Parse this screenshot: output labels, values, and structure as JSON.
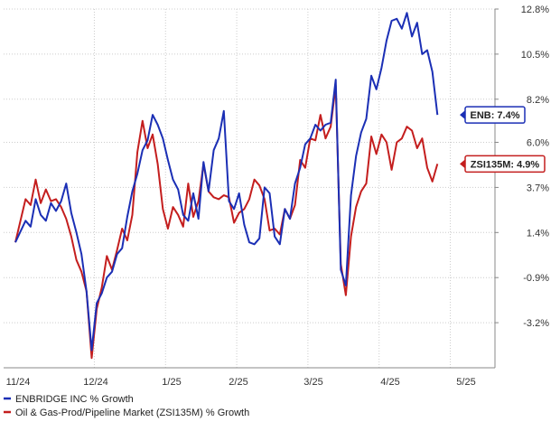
{
  "colors": {
    "enb": "#1b2fb5",
    "zsi": "#c41e1e",
    "grid": "#cccccc",
    "axis": "#888888"
  },
  "chart_data": {
    "type": "line",
    "title": "",
    "xlabel": "",
    "ylabel": "",
    "x_ticks": [
      "11/24",
      "12/24",
      "1/25",
      "2/25",
      "3/25",
      "4/25",
      "5/25"
    ],
    "y_ticks": [
      "12.8%",
      "10.5%",
      "8.2%",
      "6.0%",
      "3.7%",
      "1.4%",
      "-0.9%",
      "-3.2%"
    ],
    "ylim": [
      -5.5,
      12.8
    ],
    "grid": true,
    "legend_position": "bottom",
    "series": [
      {
        "name": "ENBRIDGE INC % Growth",
        "tag": "ENB: 7.4%",
        "points": [
          [
            0,
            0.9
          ],
          [
            2,
            2.0
          ],
          [
            3,
            1.7
          ],
          [
            4,
            3.1
          ],
          [
            5,
            2.3
          ],
          [
            6,
            2.0
          ],
          [
            7,
            2.9
          ],
          [
            8,
            2.5
          ],
          [
            9,
            3.0
          ],
          [
            10,
            3.9
          ],
          [
            11,
            2.4
          ],
          [
            12,
            1.4
          ],
          [
            13,
            0.3
          ],
          [
            14,
            -1.6
          ],
          [
            15,
            -4.6
          ],
          [
            16,
            -2.2
          ],
          [
            17,
            -1.7
          ],
          [
            18,
            -0.9
          ],
          [
            19,
            -0.6
          ],
          [
            20,
            0.3
          ],
          [
            21,
            0.6
          ],
          [
            22,
            2.2
          ],
          [
            23,
            3.5
          ],
          [
            24,
            4.4
          ],
          [
            25,
            5.6
          ],
          [
            26,
            6.1
          ],
          [
            27,
            7.4
          ],
          [
            28,
            6.9
          ],
          [
            29,
            6.2
          ],
          [
            30,
            5.1
          ],
          [
            31,
            4.1
          ],
          [
            32,
            3.6
          ],
          [
            33,
            2.3
          ],
          [
            34,
            2.0
          ],
          [
            35,
            3.4
          ],
          [
            36,
            2.1
          ],
          [
            37,
            5.0
          ],
          [
            38,
            3.5
          ],
          [
            39,
            5.6
          ],
          [
            40,
            6.2
          ],
          [
            41,
            7.6
          ],
          [
            42,
            3.0
          ],
          [
            43,
            2.6
          ],
          [
            44,
            3.4
          ],
          [
            45,
            1.8
          ],
          [
            46,
            0.9
          ],
          [
            47,
            0.8
          ],
          [
            48,
            1.1
          ],
          [
            49,
            3.7
          ],
          [
            50,
            3.4
          ],
          [
            51,
            1.2
          ],
          [
            52,
            0.8
          ],
          [
            53,
            2.6
          ],
          [
            54,
            2.1
          ],
          [
            55,
            3.9
          ],
          [
            56,
            4.7
          ],
          [
            57,
            5.9
          ],
          [
            58,
            6.2
          ],
          [
            59,
            6.9
          ],
          [
            60,
            6.6
          ],
          [
            61,
            6.9
          ],
          [
            62,
            7.0
          ],
          [
            63,
            9.2
          ],
          [
            64,
            -0.5
          ],
          [
            65,
            -1.3
          ],
          [
            66,
            3.3
          ],
          [
            67,
            5.3
          ],
          [
            68,
            6.5
          ],
          [
            69,
            7.2
          ],
          [
            70,
            9.4
          ],
          [
            71,
            8.7
          ],
          [
            72,
            9.8
          ],
          [
            73,
            11.2
          ],
          [
            74,
            12.2
          ],
          [
            75,
            12.3
          ],
          [
            76,
            11.8
          ],
          [
            77,
            12.6
          ],
          [
            78,
            11.4
          ],
          [
            79,
            12.1
          ],
          [
            80,
            10.5
          ],
          [
            81,
            10.7
          ],
          [
            82,
            9.6
          ],
          [
            83,
            7.4
          ]
        ]
      },
      {
        "name": "Oil & Gas-Prod/Pipeline Market (ZSI135M) % Growth",
        "tag": "ZSI135M: 4.9%",
        "points": [
          [
            0,
            0.9
          ],
          [
            2,
            3.1
          ],
          [
            3,
            2.8
          ],
          [
            4,
            4.1
          ],
          [
            5,
            2.9
          ],
          [
            6,
            3.6
          ],
          [
            7,
            3.0
          ],
          [
            8,
            3.1
          ],
          [
            9,
            2.7
          ],
          [
            10,
            2.1
          ],
          [
            11,
            1.2
          ],
          [
            12,
            0.0
          ],
          [
            13,
            -0.6
          ],
          [
            14,
            -1.6
          ],
          [
            15,
            -5.0
          ],
          [
            16,
            -2.5
          ],
          [
            17,
            -1.4
          ],
          [
            18,
            0.2
          ],
          [
            19,
            -0.5
          ],
          [
            20,
            0.5
          ],
          [
            21,
            1.6
          ],
          [
            22,
            1.0
          ],
          [
            23,
            2.3
          ],
          [
            24,
            5.5
          ],
          [
            25,
            7.1
          ],
          [
            26,
            5.7
          ],
          [
            27,
            6.4
          ],
          [
            28,
            4.9
          ],
          [
            29,
            2.6
          ],
          [
            30,
            1.6
          ],
          [
            31,
            2.7
          ],
          [
            32,
            2.3
          ],
          [
            33,
            1.7
          ],
          [
            34,
            3.9
          ],
          [
            35,
            2.2
          ],
          [
            36,
            3.0
          ],
          [
            37,
            4.9
          ],
          [
            38,
            3.5
          ],
          [
            39,
            3.2
          ],
          [
            40,
            3.1
          ],
          [
            41,
            3.3
          ],
          [
            42,
            3.2
          ],
          [
            43,
            1.9
          ],
          [
            44,
            2.4
          ],
          [
            45,
            2.6
          ],
          [
            46,
            3.1
          ],
          [
            47,
            4.1
          ],
          [
            48,
            3.8
          ],
          [
            49,
            3.1
          ],
          [
            50,
            1.5
          ],
          [
            51,
            1.6
          ],
          [
            52,
            1.3
          ],
          [
            53,
            2.6
          ],
          [
            54,
            2.1
          ],
          [
            55,
            2.8
          ],
          [
            56,
            5.1
          ],
          [
            57,
            4.7
          ],
          [
            58,
            6.2
          ],
          [
            59,
            6.1
          ],
          [
            60,
            7.4
          ],
          [
            61,
            6.2
          ],
          [
            62,
            6.8
          ],
          [
            63,
            8.9
          ],
          [
            64,
            -0.2
          ],
          [
            65,
            -1.8
          ],
          [
            66,
            1.2
          ],
          [
            67,
            2.7
          ],
          [
            68,
            3.5
          ],
          [
            69,
            3.9
          ],
          [
            70,
            6.3
          ],
          [
            71,
            5.4
          ],
          [
            72,
            6.4
          ],
          [
            73,
            6.0
          ],
          [
            74,
            4.6
          ],
          [
            75,
            6.0
          ],
          [
            76,
            6.2
          ],
          [
            77,
            6.8
          ],
          [
            78,
            6.6
          ],
          [
            79,
            5.7
          ],
          [
            80,
            6.2
          ],
          [
            81,
            4.7
          ],
          [
            82,
            4.0
          ],
          [
            83,
            4.9
          ]
        ]
      }
    ]
  }
}
